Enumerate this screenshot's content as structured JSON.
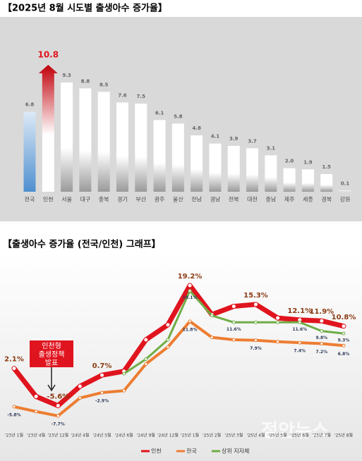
{
  "chart_data": [
    {
      "type": "bar",
      "title": "【2025년 8월 시도별 출생아수 증가율】",
      "categories": [
        "전국",
        "인천",
        "서울",
        "대구",
        "충북",
        "경기",
        "부산",
        "광주",
        "울산",
        "전남",
        "경남",
        "전북",
        "대전",
        "충남",
        "제주",
        "세종",
        "경북",
        "강원"
      ],
      "values": [
        6.8,
        10.8,
        9.3,
        8.8,
        8.5,
        7.6,
        7.5,
        6.1,
        5.8,
        4.8,
        4.1,
        3.9,
        3.7,
        3.1,
        2.0,
        1.9,
        1.5,
        0.1
      ],
      "value_labels": [
        "6.8",
        "10.8",
        "9.3",
        "8.8",
        "8.5",
        "7.6",
        "7.5",
        "6.1",
        "5.8",
        "4.8",
        "4.1",
        "3.9",
        "3.7",
        "3.1",
        "2.0",
        "1.9",
        "1.5",
        "0.1"
      ],
      "colors": [
        "#5b9bd5",
        "#e0141e",
        "#9a9a9a",
        "#9a9a9a",
        "#9a9a9a",
        "#9a9a9a",
        "#9a9a9a",
        "#9a9a9a",
        "#9a9a9a",
        "#9a9a9a",
        "#9a9a9a",
        "#9a9a9a",
        "#9a9a9a",
        "#9a9a9a",
        "#9a9a9a",
        "#9a9a9a",
        "#9a9a9a",
        "#9a9a9a"
      ]
    },
    {
      "type": "line",
      "title": "【출생아수 증가율 (전국/인천) 그래프】",
      "categories": [
        "'23년 1월",
        "'23년 4월",
        "'23년 12월",
        "'24년 4월",
        "'24년 5월",
        "'24년 6월",
        "'24년 9월",
        "'24년 12월",
        "'25년 1월",
        "'25년 2월",
        "'25년 3월",
        "'25년 4월",
        "'25년 5월",
        "'25년 6월",
        "'25년 7월",
        "'25년 8월"
      ],
      "series": [
        {
          "name": "인천",
          "color": "#e0141e",
          "values": [
            2.1,
            -3.7,
            -5.6,
            -1.6,
            0.7,
            1.5,
            8.0,
            11.1,
            19.2,
            13.2,
            14.9,
            15.3,
            12.5,
            12.1,
            11.9,
            10.8
          ],
          "value_labels": [
            "2.1%",
            null,
            "-5.6%",
            null,
            "0.7%",
            null,
            null,
            null,
            "19.2%",
            null,
            null,
            "15.3%",
            null,
            "12.1%",
            "11.9%",
            "10.8%"
          ]
        },
        {
          "name": "전국",
          "color": "#ed7d31",
          "values": [
            -5.8,
            -6.8,
            -7.7,
            -4.0,
            -2.9,
            -2.5,
            3.0,
            6.5,
            11.8,
            8.5,
            8.0,
            7.9,
            7.6,
            7.4,
            7.2,
            6.8
          ],
          "value_labels": [
            "-5.8%",
            null,
            "-7.7%",
            null,
            "-2.9%",
            null,
            null,
            null,
            "11.8%",
            null,
            null,
            "7.9%",
            null,
            "7.4%",
            "7.2%",
            "6.8%"
          ]
        },
        {
          "name": "상위 지자체",
          "color": "#70ad47",
          "values": [
            null,
            null,
            null,
            null,
            null,
            1.0,
            4.0,
            8.0,
            18.1,
            13.0,
            11.6,
            11.6,
            11.6,
            11.6,
            9.8,
            9.3
          ],
          "value_labels": [
            null,
            null,
            null,
            null,
            null,
            null,
            null,
            null,
            "18.1%",
            null,
            "11.6%",
            null,
            null,
            "11.6%",
            "9.8%",
            "9.3%"
          ]
        }
      ],
      "annotation": [
        "인천형",
        "출생정책",
        "발표"
      ],
      "watermark": "정안뉴스"
    }
  ]
}
